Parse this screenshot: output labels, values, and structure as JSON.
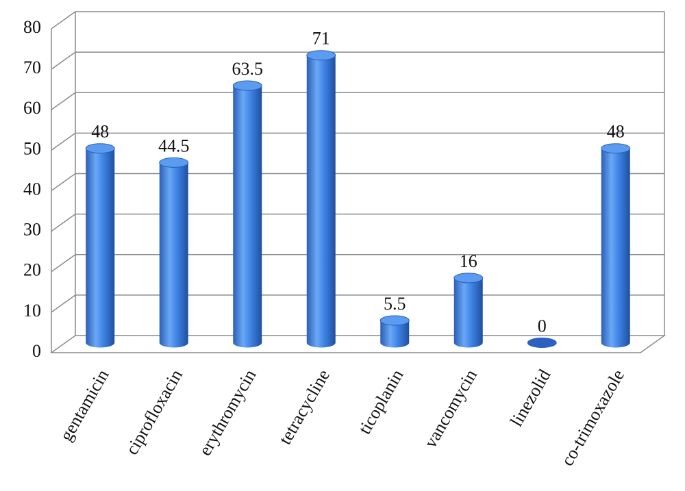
{
  "chart_data": {
    "type": "bar3d",
    "categories": [
      "gentamicin",
      "ciprofloxacin",
      "erythromycin",
      "tetracycline",
      "ticoplanin",
      "vancomycin",
      "linezolid",
      "co-trimoxazole"
    ],
    "values": [
      48,
      44.5,
      63.5,
      71,
      5.5,
      16,
      0,
      48
    ],
    "color": "#3a7fe0",
    "ylim": [
      0,
      80
    ],
    "yticks": [
      0,
      10,
      20,
      30,
      40,
      50,
      60,
      70,
      80
    ],
    "grid": true
  }
}
